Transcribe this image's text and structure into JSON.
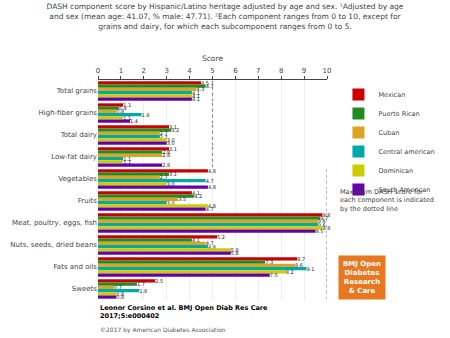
{
  "chart_data": {
    "type": "bar",
    "orientation": "horizontal",
    "title": "DASH component score by Hispanic/Latino heritage adjusted by age and sex. ¹Adjusted by age\nand sex (mean age: 41.07, % male: 47.71). ²Each component ranges from 0 to 10, except for\ngrains and dairy, for which each subcomponent ranges from 0 to 5.",
    "x_label": "Score",
    "categories": [
      "Total grains",
      "High-fiber grains",
      "Total dairy",
      "Low-fat dairy",
      "Vegetables",
      "Fruits",
      "Meat, poultry, eggs, fish",
      "Nuts, seeds, dried beans",
      "Fats and oils",
      "Sweets"
    ],
    "series": [
      {
        "name": "Mexican",
        "color": "#cc0000",
        "values": [
          4.5,
          1.1,
          3.1,
          3.1,
          4.8,
          4.1,
          9.8,
          5.2,
          8.7,
          2.5
        ],
        "value_labels": [
          "4.5",
          "1.1",
          "3.1",
          "3.1",
          "4.8",
          "4.1",
          "9.8",
          "5.2",
          "8.7",
          "2.5"
        ]
      },
      {
        "name": "Puerto Rican",
        "color": "#228B22",
        "values": [
          4.7,
          0.9,
          3.2,
          2.8,
          3.1,
          4.2,
          9.7,
          4.1,
          7.3,
          1.7
        ],
        "value_labels": [
          "4.7",
          "0.9",
          "3.2",
          "2.8",
          "3.1",
          "4.2",
          "9.7",
          "4.1",
          "7.3",
          "1.7"
        ]
      },
      {
        "name": "Cuban",
        "color": "#DAA520",
        "values": [
          4.3,
          0.8,
          2.7,
          2.8,
          2.7,
          3.5,
          9.6,
          4.7,
          8.6,
          0.7
        ],
        "value_labels": [
          "4.3",
          "0.8",
          "2.7",
          "2.8",
          "2.7",
          "3.5",
          "9.6",
          "4.7",
          "8.6",
          "0.7"
        ]
      },
      {
        "name": "Central american",
        "color": "#00AAAA",
        "values": [
          4.1,
          1.9,
          2.7,
          1.1,
          4.7,
          3.0,
          9.6,
          4.8,
          9.1,
          1.8
        ],
        "value_labels": [
          "4.1",
          "1.9",
          "2.7",
          "1.1",
          "4.7",
          "3.0",
          "9.6",
          "4.8",
          "9.1",
          "1.8"
        ]
      },
      {
        "name": "Dominican",
        "color": "#CCCC00",
        "values": [
          4.1,
          1.1,
          3.0,
          1.1,
          3.0,
          4.8,
          9.8,
          5.8,
          8.2,
          0.8
        ],
        "value_labels": [
          "4.1",
          "1.1",
          "3.0",
          "1.1",
          "3.0",
          "4.8",
          "9.8",
          "5.8",
          "8.2",
          "0.8"
        ]
      },
      {
        "name": "South American",
        "color": "#6600AA",
        "values": [
          4.1,
          1.4,
          3.0,
          2.8,
          4.8,
          4.7,
          9.5,
          5.8,
          7.5,
          0.8
        ],
        "value_labels": [
          "4.1",
          "1.4",
          "3.0",
          "2.8",
          "4.8",
          "4.7",
          "9.5",
          "5.8",
          "7.5",
          "0.8"
        ]
      }
    ],
    "max_values": [
      5,
      5,
      5,
      5,
      10,
      10,
      10,
      10,
      10,
      10
    ],
    "xlim": [
      0,
      10
    ],
    "xticks": [
      0,
      1,
      2,
      3,
      4,
      5,
      6,
      7,
      8,
      9,
      10
    ],
    "grid": true,
    "data_labels": true,
    "legend": "right",
    "annotations": [
      {
        "text": "Maximum DASH score for\neach component is indicated\nby the dotted line"
      },
      {
        "text": "Leonor Corsino et al. BMJ Open Diab Res Care\n2017;5:e000402"
      },
      {
        "text": "©2017 by American Diabetes Association"
      },
      {
        "text": "BMJ Open\nDiabetes\nResearch\n& Care",
        "color": "#e87722"
      }
    ]
  }
}
